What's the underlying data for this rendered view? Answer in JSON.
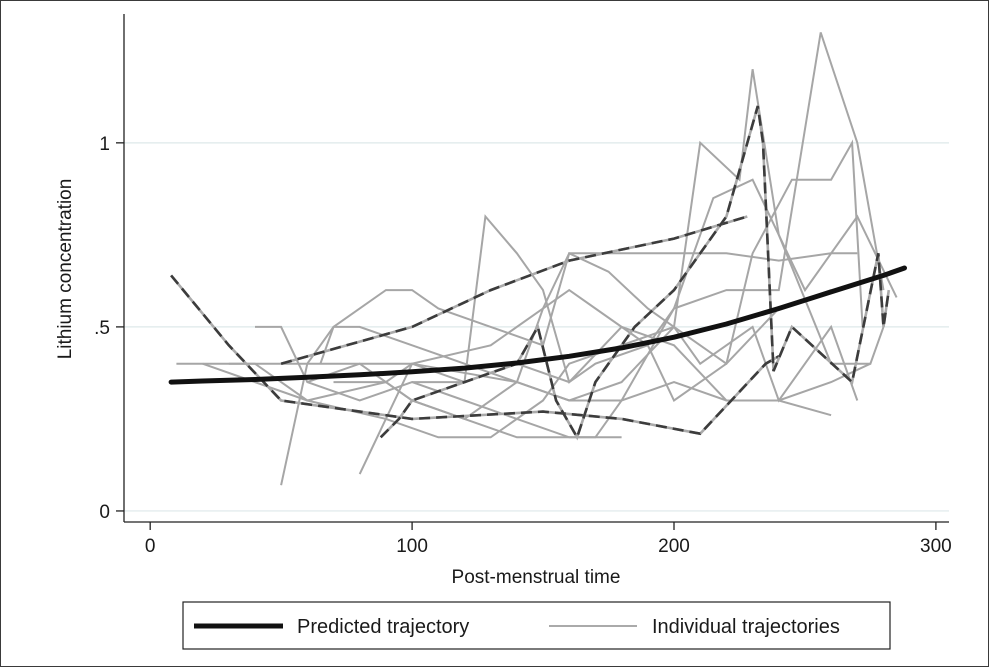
{
  "chart_data": {
    "type": "line",
    "xlabel": "Post-menstrual time",
    "ylabel": "Lithium concentration",
    "xlim": [
      -10,
      305
    ],
    "ylim": [
      -0.03,
      1.35
    ],
    "x_ticks": [
      {
        "value": 0,
        "label": "0"
      },
      {
        "value": 100,
        "label": "100"
      },
      {
        "value": 200,
        "label": "200"
      },
      {
        "value": 300,
        "label": "300"
      }
    ],
    "y_ticks": [
      {
        "value": 0,
        "label": "0"
      },
      {
        "value": 0.5,
        "label": ".5"
      },
      {
        "value": 1,
        "label": "1"
      }
    ],
    "grid": true,
    "legend_position": "bottom",
    "legend": [
      {
        "label": "Predicted trajectory",
        "style": "thick-solid",
        "color": "#111111"
      },
      {
        "label": "Individual trajectories",
        "style": "thin-solid",
        "color": "#aaaaaa"
      }
    ],
    "colors": {
      "predicted": "#111111",
      "individual": "#a6a6a6",
      "highlighted": "#3c3c3c",
      "grid": "#dde8ea"
    },
    "predicted": {
      "x": [
        8,
        20,
        40,
        60,
        80,
        100,
        120,
        140,
        160,
        180,
        200,
        220,
        240,
        260,
        280,
        288
      ],
      "y": [
        0.35,
        0.353,
        0.357,
        0.363,
        0.37,
        0.378,
        0.388,
        0.402,
        0.42,
        0.443,
        0.472,
        0.508,
        0.55,
        0.595,
        0.64,
        0.66
      ]
    },
    "individual_series": [
      {
        "x": [
          40,
          50,
          60,
          80,
          100,
          120,
          140,
          160,
          180
        ],
        "y": [
          0.5,
          0.5,
          0.35,
          0.3,
          0.35,
          0.3,
          0.25,
          0.2,
          0.2
        ]
      },
      {
        "x": [
          50,
          60,
          70,
          80,
          100,
          120,
          140,
          160,
          180,
          200,
          220,
          240,
          260
        ],
        "y": [
          0.07,
          0.4,
          0.5,
          0.5,
          0.45,
          0.4,
          0.35,
          0.3,
          0.3,
          0.35,
          0.3,
          0.3,
          0.26
        ]
      },
      {
        "x": [
          65,
          70,
          90,
          100,
          110,
          130,
          150,
          160,
          180,
          200,
          220,
          240,
          260,
          270
        ],
        "y": [
          0.4,
          0.5,
          0.6,
          0.6,
          0.55,
          0.5,
          0.45,
          0.7,
          0.7,
          0.7,
          0.7,
          0.68,
          0.7,
          0.7
        ]
      },
      {
        "x": [
          80,
          100,
          120,
          128,
          140,
          150,
          160,
          180,
          200,
          220,
          240,
          260,
          275
        ],
        "y": [
          0.1,
          0.4,
          0.35,
          0.8,
          0.7,
          0.6,
          0.35,
          0.5,
          0.45,
          0.3,
          0.3,
          0.35,
          0.4
        ]
      },
      {
        "x": [
          30,
          60,
          100,
          140,
          160,
          180,
          200,
          210,
          225,
          230,
          240,
          260,
          275,
          280
        ],
        "y": [
          0.4,
          0.4,
          0.4,
          0.35,
          0.3,
          0.35,
          0.5,
          1.0,
          0.9,
          1.2,
          0.75,
          0.4,
          0.4,
          0.5
        ]
      },
      {
        "x": [
          10,
          40,
          60,
          90,
          100,
          120,
          140,
          155,
          170,
          180,
          200,
          220,
          230,
          240,
          256,
          270,
          280
        ],
        "y": [
          0.4,
          0.4,
          0.3,
          0.35,
          0.3,
          0.25,
          0.2,
          0.2,
          0.2,
          0.3,
          0.55,
          0.6,
          0.6,
          0.6,
          1.3,
          1.0,
          0.6
        ]
      },
      {
        "x": [
          20,
          60,
          90,
          110,
          130,
          150,
          160,
          180,
          200,
          210,
          230,
          240,
          260,
          270
        ],
        "y": [
          0.4,
          0.3,
          0.25,
          0.2,
          0.2,
          0.3,
          0.4,
          0.45,
          0.5,
          0.4,
          0.5,
          0.3,
          0.5,
          0.3
        ]
      },
      {
        "x": [
          70,
          90,
          100,
          130,
          160,
          170,
          190,
          200,
          220,
          230,
          245,
          260,
          268,
          272
        ],
        "y": [
          0.35,
          0.35,
          0.4,
          0.45,
          0.6,
          0.55,
          0.45,
          0.3,
          0.4,
          0.7,
          0.9,
          0.9,
          1.0,
          0.5
        ]
      },
      {
        "x": [
          100,
          120,
          140,
          160,
          170,
          190,
          200,
          215,
          230,
          250,
          270,
          285
        ],
        "y": [
          0.35,
          0.35,
          0.4,
          0.35,
          0.4,
          0.45,
          0.55,
          0.85,
          0.9,
          0.6,
          0.8,
          0.58
        ]
      },
      {
        "x": [
          60,
          80,
          100,
          120,
          140,
          150,
          160,
          175,
          190,
          200,
          220,
          240,
          260
        ],
        "y": [
          0.35,
          0.4,
          0.3,
          0.25,
          0.35,
          0.55,
          0.7,
          0.65,
          0.55,
          0.5,
          0.4,
          0.55,
          0.6
        ]
      }
    ],
    "highlighted_series": [
      {
        "x": [
          8,
          30,
          50,
          100,
          150,
          180,
          210,
          235,
          240
        ],
        "y": [
          0.64,
          0.45,
          0.3,
          0.25,
          0.27,
          0.25,
          0.21,
          0.4,
          0.42
        ]
      },
      {
        "x": [
          50,
          100,
          130,
          160,
          200,
          228
        ],
        "y": [
          0.4,
          0.5,
          0.6,
          0.68,
          0.74,
          0.8
        ]
      },
      {
        "x": [
          88,
          95,
          100,
          120,
          140,
          148,
          155,
          163,
          170,
          185,
          200,
          220,
          232,
          234,
          238,
          245,
          268,
          278,
          280,
          282
        ],
        "y": [
          0.2,
          0.25,
          0.3,
          0.35,
          0.4,
          0.5,
          0.3,
          0.2,
          0.35,
          0.5,
          0.6,
          0.8,
          1.1,
          1.0,
          0.38,
          0.5,
          0.35,
          0.7,
          0.5,
          0.6
        ]
      }
    ]
  }
}
